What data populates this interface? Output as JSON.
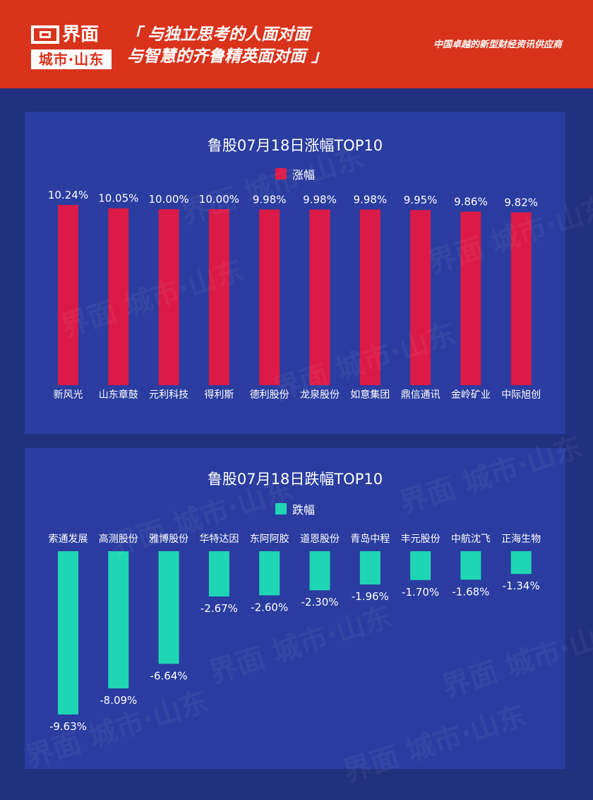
{
  "header": {
    "logo_top": "界面",
    "logo_bottom": "城市·山东",
    "slogan_line1": "「 与独立思考的人面对面",
    "slogan_line2": "与智慧的齐鲁精英面对面 」",
    "tagline": "中国卓越的新型财经资讯供应商"
  },
  "colors": {
    "header": "#d9331c",
    "background": "#223080",
    "panel": "#2b3da0",
    "gain_bar": "#dc1a48",
    "loss_bar": "#1fd6b4"
  },
  "chart_data": [
    {
      "type": "bar",
      "title": "鲁股07月18日涨幅TOP10",
      "legend": "涨幅",
      "legend_position": "top-center",
      "categories": [
        "新风光",
        "山东章鼓",
        "元利科技",
        "得利斯",
        "德利股份",
        "龙泉股份",
        "如意集团",
        "鼎信通讯",
        "金岭矿业",
        "中际旭创"
      ],
      "values": [
        10.24,
        10.05,
        10.0,
        10.0,
        9.98,
        9.98,
        9.98,
        9.95,
        9.86,
        9.82
      ],
      "labels": [
        "10.24%",
        "10.05%",
        "10.00%",
        "10.00%",
        "9.98%",
        "9.98%",
        "9.98%",
        "9.95%",
        "9.86%",
        "9.82%"
      ],
      "ylim": [
        0,
        10.24
      ],
      "grid": false
    },
    {
      "type": "bar",
      "title": "鲁股07月18日跌幅TOP10",
      "legend": "跌幅",
      "legend_position": "top-center",
      "categories": [
        "索通发展",
        "高测股份",
        "雅博股份",
        "华特达因",
        "东阿阿胶",
        "道恩股份",
        "青岛中程",
        "丰元股份",
        "中航沈飞",
        "正海生物"
      ],
      "values": [
        -9.63,
        -8.09,
        -6.64,
        -2.67,
        -2.6,
        -2.3,
        -1.96,
        -1.7,
        -1.68,
        -1.34
      ],
      "labels": [
        "-9.63%",
        "-8.09%",
        "-6.64%",
        "-2.67%",
        "-2.60%",
        "-2.30%",
        "-1.96%",
        "-1.70%",
        "-1.68%",
        "-1.34%"
      ],
      "ylim": [
        -9.63,
        0
      ],
      "grid": false
    }
  ],
  "watermark": "界面 城市·山东"
}
